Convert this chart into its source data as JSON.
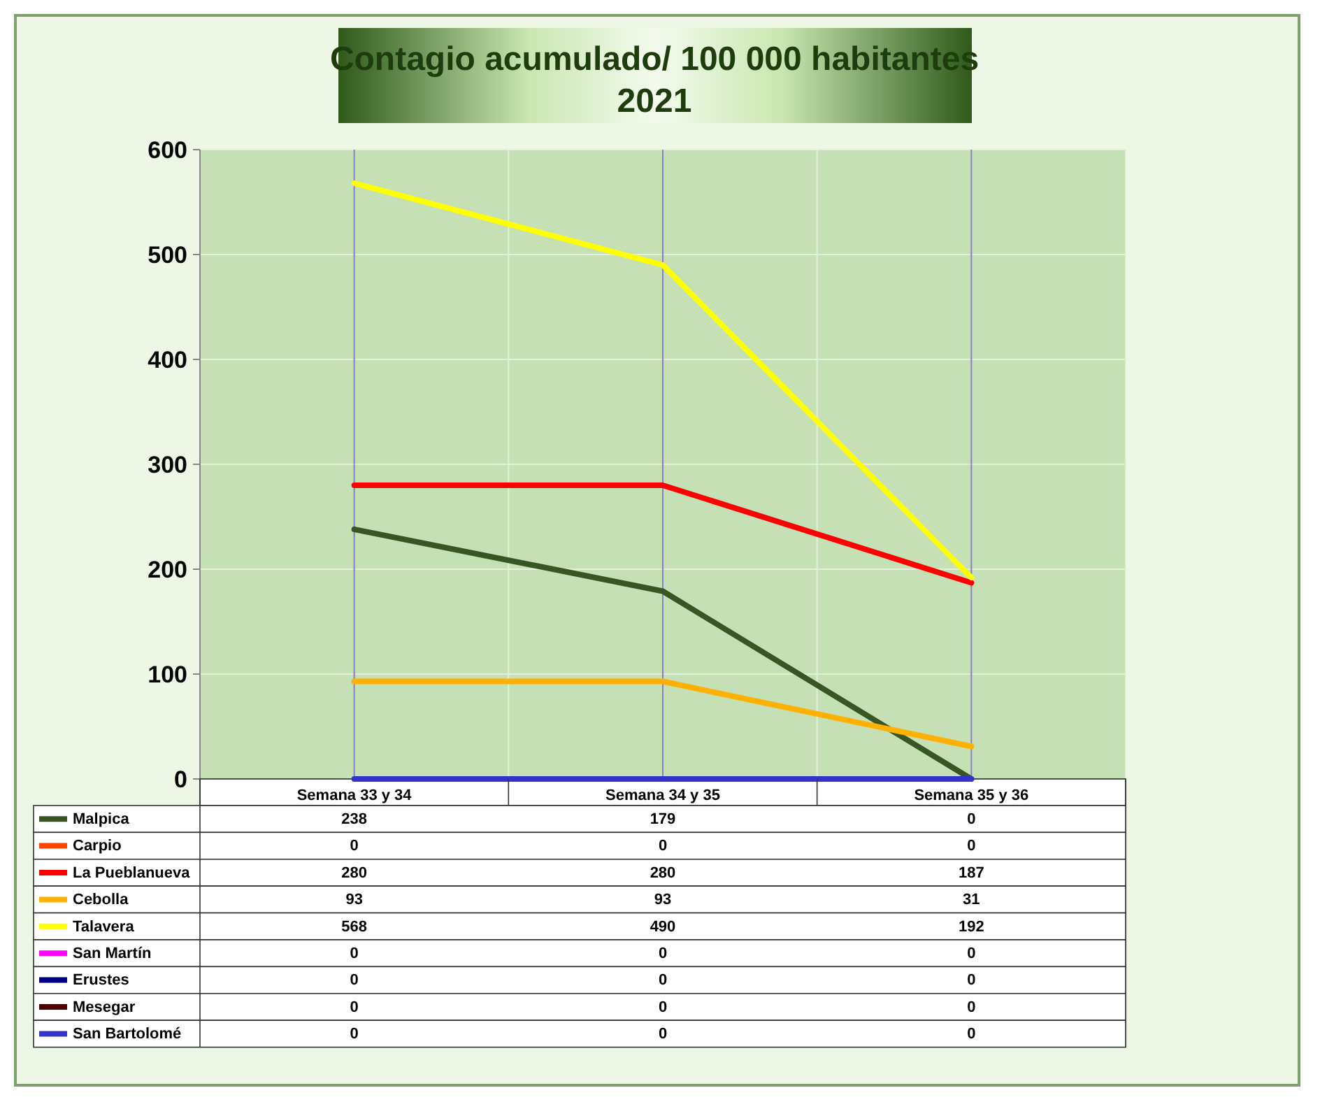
{
  "chart_data": {
    "type": "line",
    "title": "Contagio acumulado/ 100 000 habitantes\n2021",
    "categories": [
      "Semana 33 y 34",
      "Semana 34 y 35",
      "Semana 35 y 36"
    ],
    "series": [
      {
        "name": "Malpica",
        "color": "#375623",
        "values": [
          238,
          179,
          0
        ]
      },
      {
        "name": "Carpio",
        "color": "#ff4500",
        "values": [
          null,
          null,
          null
        ],
        "value_labels": [
          "0",
          "0",
          "0"
        ]
      },
      {
        "name": "La Pueblanueva",
        "color": "#ff0000",
        "values": [
          280,
          280,
          187
        ]
      },
      {
        "name": "Cebolla",
        "color": "#ffb000",
        "values": [
          93,
          93,
          31
        ]
      },
      {
        "name": "Talavera",
        "color": "#ffff00",
        "values": [
          568,
          490,
          192
        ]
      },
      {
        "name": "San Martín",
        "color": "#ff00ff",
        "values": [
          null,
          null,
          null
        ],
        "value_labels": [
          "0",
          "0",
          "0"
        ]
      },
      {
        "name": "Erustes",
        "color": "#000080",
        "values": [
          null,
          null,
          null
        ],
        "value_labels": [
          "0",
          "0",
          "0"
        ]
      },
      {
        "name": "Mesegar",
        "color": "#4d0000",
        "values": [
          null,
          null,
          null
        ],
        "value_labels": [
          "0",
          "0",
          "0"
        ]
      },
      {
        "name": "San Bartolomé",
        "color": "#3333cc",
        "values": [
          0,
          0,
          0
        ],
        "value_labels": [
          "0",
          "0",
          "0"
        ]
      }
    ],
    "ylim": [
      0,
      600
    ],
    "yticks": [
      0,
      100,
      200,
      300,
      400,
      500,
      600
    ],
    "grid": true,
    "legend": "bottom",
    "data_labels": true
  }
}
